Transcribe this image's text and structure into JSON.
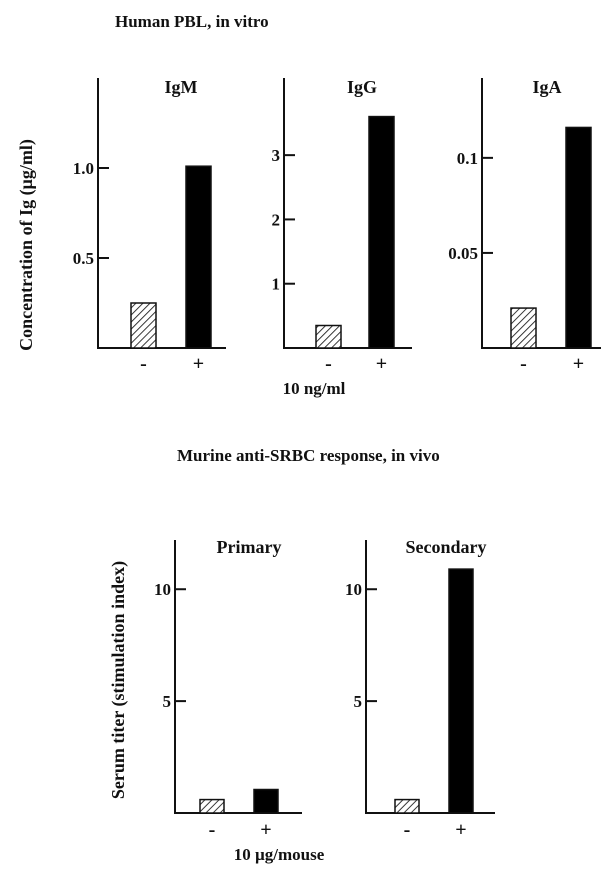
{
  "colors": {
    "control_fill": "#ffffff",
    "treated_fill": "#000000",
    "axis": "#111111",
    "hatch": "#222222"
  },
  "top_section": {
    "title": "Human  PBL,  in  vitro",
    "ylabel": "Concentration  of  Ig  (µg/ml)",
    "xlabel": "10   ng/ml"
  },
  "bottom_section": {
    "title": "Murine  anti-SRBC  response,  in  vivo",
    "ylabel": "Serum  titer  (stimulation  index)",
    "xlabel": "10  µg/mouse"
  },
  "chart_data": [
    {
      "type": "bar",
      "title": "IgM",
      "categories": [
        "-",
        "+"
      ],
      "values": [
        0.25,
        1.01
      ],
      "ylim": [
        0,
        1.5
      ],
      "yticks": [
        0.5,
        1.0
      ],
      "ytick_labels": [
        "0.5",
        "1.0"
      ],
      "bar_styles": [
        "hatched",
        "solid"
      ]
    },
    {
      "type": "bar",
      "title": "IgG",
      "categories": [
        "-",
        "+"
      ],
      "values": [
        0.35,
        3.6
      ],
      "ylim": [
        0,
        4.2
      ],
      "yticks": [
        1,
        2,
        3
      ],
      "ytick_labels": [
        "1",
        "2",
        "3"
      ],
      "bar_styles": [
        "hatched",
        "solid"
      ]
    },
    {
      "type": "bar",
      "title": "IgA",
      "categories": [
        "-",
        "+"
      ],
      "values": [
        0.021,
        0.116
      ],
      "ylim": [
        0,
        0.142
      ],
      "yticks": [
        0.05,
        0.1
      ],
      "ytick_labels": [
        "0.05",
        "0.1"
      ],
      "bar_styles": [
        "hatched",
        "solid"
      ]
    },
    {
      "type": "bar",
      "title": "Primary",
      "categories": [
        "-",
        "+"
      ],
      "values": [
        0.6,
        1.05
      ],
      "ylim": [
        0,
        12.2
      ],
      "yticks": [
        5,
        10
      ],
      "ytick_labels": [
        "5",
        "10"
      ],
      "bar_styles": [
        "hatched",
        "solid"
      ]
    },
    {
      "type": "bar",
      "title": "Secondary",
      "categories": [
        "-",
        "+"
      ],
      "values": [
        0.6,
        10.9
      ],
      "ylim": [
        0,
        12.2
      ],
      "yticks": [
        5,
        10
      ],
      "ytick_labels": [
        "5",
        "10"
      ],
      "bar_styles": [
        "hatched",
        "solid"
      ]
    }
  ]
}
